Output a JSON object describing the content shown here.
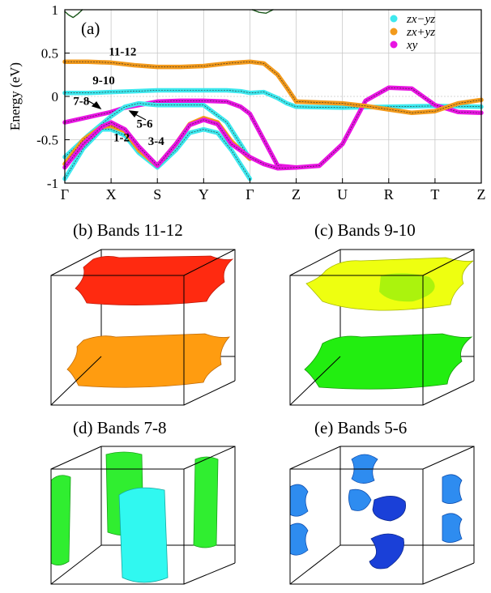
{
  "chart_data": {
    "type": "line",
    "panel_label": "(a)",
    "ylabel": "Energy (eV)",
    "ylim": [
      -1,
      1
    ],
    "yticks": [
      {
        "value": 1,
        "label": "1"
      },
      {
        "value": 0.5,
        "label": "0.5"
      },
      {
        "value": 0,
        "label": "0"
      },
      {
        "value": -0.5,
        "label": "-0.5"
      },
      {
        "value": -1,
        "label": "-1"
      }
    ],
    "kpoints": [
      {
        "pos": 0,
        "label": "Γ"
      },
      {
        "pos": 1,
        "label": "X"
      },
      {
        "pos": 2,
        "label": "S"
      },
      {
        "pos": 3,
        "label": "Y"
      },
      {
        "pos": 4,
        "label": "Γ"
      },
      {
        "pos": 5,
        "label": "Z"
      },
      {
        "pos": 6,
        "label": "U"
      },
      {
        "pos": 7,
        "label": "R"
      },
      {
        "pos": 8,
        "label": "T"
      },
      {
        "pos": 9,
        "label": "Z"
      }
    ],
    "legend": [
      {
        "name": "zx−yz",
        "color": "#3ee8ee"
      },
      {
        "name": "zx+yz",
        "color": "#f29a1c"
      },
      {
        "name": "xy",
        "color": "#e815e2"
      }
    ],
    "series": [
      {
        "name": "band-11-12",
        "color": "#f29a1c",
        "x": [
          0,
          0.5,
          1,
          1.5,
          2,
          2.5,
          3,
          3.5,
          4,
          4.3,
          4.6,
          4.8,
          5
        ],
        "y": [
          0.4,
          0.4,
          0.39,
          0.36,
          0.34,
          0.34,
          0.35,
          0.38,
          0.4,
          0.38,
          0.25,
          0.1,
          -0.06
        ]
      },
      {
        "name": "band-9-10",
        "color": "#3ee8ee",
        "x": [
          0,
          0.5,
          1,
          1.5,
          2,
          2.5,
          3,
          3.5,
          3.8,
          4,
          4.3,
          4.6,
          4.8,
          5,
          6,
          7,
          8,
          9
        ],
        "y": [
          0.04,
          0.04,
          0.05,
          0.06,
          0.07,
          0.07,
          0.07,
          0.07,
          0.06,
          0.04,
          0.05,
          -0.02,
          -0.08,
          -0.12,
          -0.13,
          -0.12,
          -0.11,
          -0.12
        ]
      },
      {
        "name": "band-7-8",
        "color": "#e815e2",
        "x": [
          0,
          0.5,
          1,
          1.3,
          1.6,
          2,
          2.5,
          3,
          3.5,
          3.8,
          4,
          4.3,
          4.6,
          5
        ],
        "y": [
          -0.3,
          -0.24,
          -0.18,
          -0.13,
          -0.1,
          -0.06,
          -0.05,
          -0.05,
          -0.06,
          -0.12,
          -0.2,
          -0.5,
          -0.8,
          -0.82
        ]
      },
      {
        "name": "band-5-6",
        "color": "#3ee8ee",
        "x": [
          0,
          0.5,
          1,
          1.3,
          1.6,
          2,
          2.5,
          3,
          3.5,
          4
        ],
        "y": [
          -0.7,
          -0.45,
          -0.23,
          -0.12,
          -0.08,
          -0.1,
          -0.1,
          -0.1,
          -0.3,
          -0.72
        ]
      },
      {
        "name": "band-3-4",
        "color": "#3ee8ee",
        "x": [
          0,
          0.4,
          0.8,
          1,
          1.3,
          1.6,
          2,
          2.4,
          2.7,
          3,
          3.3,
          3.6,
          4
        ],
        "y": [
          -0.95,
          -0.6,
          -0.38,
          -0.38,
          -0.45,
          -0.65,
          -0.82,
          -0.62,
          -0.42,
          -0.38,
          -0.42,
          -0.62,
          -0.95
        ]
      },
      {
        "name": "band-1-2",
        "color": "#f29a1c",
        "x": [
          0,
          0.4,
          0.8,
          1,
          1.3,
          1.6,
          2,
          2.4,
          2.7,
          3,
          3.3,
          3.6,
          4
        ],
        "y": [
          -0.78,
          -0.5,
          -0.35,
          -0.34,
          -0.4,
          -0.62,
          -0.8,
          -0.55,
          -0.32,
          -0.25,
          -0.3,
          -0.52,
          -0.72
        ]
      },
      {
        "name": "band-xy-low",
        "color": "#e815e2",
        "x": [
          0,
          0.4,
          0.8,
          1,
          1.3,
          1.6,
          2,
          2.4,
          2.7,
          3,
          3.3,
          3.6,
          4,
          4.3,
          4.6,
          5,
          5.5,
          6,
          6.5,
          7,
          7.5,
          8,
          8.5,
          9
        ],
        "y": [
          -0.82,
          -0.55,
          -0.35,
          -0.3,
          -0.38,
          -0.58,
          -0.8,
          -0.55,
          -0.33,
          -0.27,
          -0.32,
          -0.55,
          -0.7,
          -0.78,
          -0.83,
          -0.82,
          -0.8,
          -0.55,
          -0.05,
          0.1,
          0.09,
          -0.1,
          -0.18,
          -0.19
        ]
      },
      {
        "name": "band-zx+yz-upper",
        "color": "#f29a1c",
        "x": [
          5,
          5.5,
          6,
          6.5,
          7,
          7.5,
          8,
          8.5,
          9
        ],
        "y": [
          -0.06,
          -0.07,
          -0.08,
          -0.11,
          -0.15,
          -0.19,
          -0.17,
          -0.08,
          -0.04
        ]
      },
      {
        "name": "band-top",
        "color": "#1a6b1a",
        "x": [
          0,
          0.08,
          0.18,
          0.28,
          0.38
        ],
        "y": [
          0.98,
          0.94,
          0.91,
          0.95,
          1.0
        ]
      },
      {
        "name": "band-top-2",
        "color": "#1a6b1a",
        "x": [
          4.05,
          4.2,
          4.35,
          4.5
        ],
        "y": [
          1.0,
          0.97,
          0.96,
          1.0
        ]
      }
    ],
    "annotations": [
      {
        "text": "11-12",
        "x": 0.95,
        "y": 0.47
      },
      {
        "text": "9-10",
        "x": 0.6,
        "y": 0.14
      },
      {
        "text": "7-8",
        "x": 0.18,
        "y": -0.1
      },
      {
        "text": "5-6",
        "x": 1.55,
        "y": -0.36
      },
      {
        "text": "1-2",
        "x": 1.05,
        "y": -0.52
      },
      {
        "text": "3-4",
        "x": 1.8,
        "y": -0.56
      }
    ],
    "grid": true
  },
  "fermi_surfaces": [
    {
      "title": "(b) Bands 11-12",
      "colors": [
        "#ff2a10",
        "#ff9c10"
      ]
    },
    {
      "title": "(c) Bands 9-10",
      "colors": [
        "#eeff10",
        "#22ee10"
      ]
    },
    {
      "title": "(d) Bands 7-8",
      "colors": [
        "#30ee30",
        "#30f8f0"
      ]
    },
    {
      "title": "(e) Bands 5-6",
      "colors": [
        "#2e8cf0",
        "#1a40d8"
      ]
    }
  ]
}
